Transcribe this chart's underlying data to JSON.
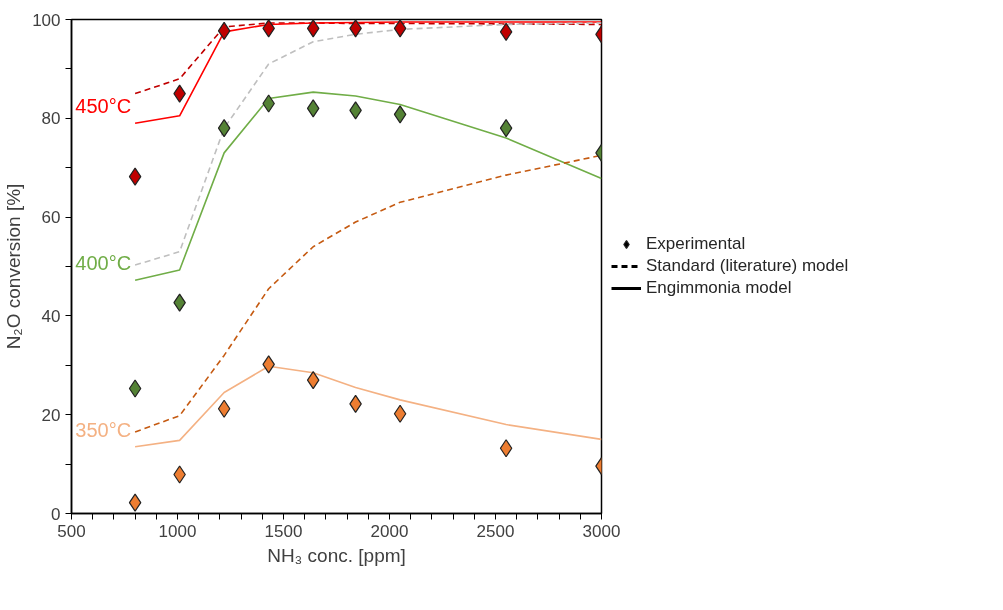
{
  "chart_data": {
    "type": "line",
    "xlabel": "NH₃ conc. [ppm]",
    "ylabel": "N₂O conversion [%]",
    "x": [
      800,
      1010,
      1220,
      1430,
      1640,
      1840,
      2050,
      2550,
      3000
    ],
    "xlim": [
      500,
      3000
    ],
    "xticks": [
      500,
      {
        "value": 600,
        "label": null
      },
      {
        "value": 700,
        "label": null
      },
      {
        "value": 800,
        "label": null
      },
      {
        "value": 900,
        "label": null
      },
      1000,
      {
        "value": 1100,
        "label": null
      },
      {
        "value": 1200,
        "label": null
      },
      {
        "value": 1300,
        "label": null
      },
      {
        "value": 1400,
        "label": null
      },
      1500,
      {
        "value": 1600,
        "label": null
      },
      {
        "value": 1700,
        "label": null
      },
      {
        "value": 1800,
        "label": null
      },
      {
        "value": 1900,
        "label": null
      },
      2000,
      {
        "value": 2100,
        "label": null
      },
      {
        "value": 2200,
        "label": null
      },
      {
        "value": 2300,
        "label": null
      },
      {
        "value": 2400,
        "label": null
      },
      2500,
      {
        "value": 2600,
        "label": null
      },
      {
        "value": 2700,
        "label": null
      },
      {
        "value": 2800,
        "label": null
      },
      {
        "value": 2900,
        "label": null
      },
      3000
    ],
    "ylim": [
      0,
      100
    ],
    "yticks": [
      0,
      {
        "value": 10,
        "label": null
      },
      20,
      {
        "value": 30,
        "label": null
      },
      40,
      {
        "value": 50,
        "label": null
      },
      60,
      {
        "value": 70,
        "label": null
      },
      80,
      {
        "value": 90,
        "label": null
      },
      100
    ],
    "grid": false,
    "legend": "right",
    "series": [
      {
        "line_style": "dashed",
        "color": "#c00000",
        "values": [
          85,
          88,
          98.5,
          99.3,
          99.3,
          99.2,
          99.2,
          99.1,
          99
        ]
      },
      {
        "line_style": "solid",
        "name": "450°C",
        "color": "#ff0000",
        "values": [
          79,
          80.5,
          97.5,
          99,
          99.3,
          99.4,
          99.5,
          99.5,
          99.5
        ]
      },
      {
        "line_style": "dashed",
        "color": "#bfbfbf",
        "values": [
          50.3,
          53,
          78,
          91,
          95.5,
          97,
          98,
          99,
          99.3
        ]
      },
      {
        "line_style": "solid",
        "name": "400°C",
        "color": "#70ad47",
        "values": [
          47.2,
          49.3,
          73,
          84,
          85.3,
          84.5,
          82.8,
          76,
          67.8
        ]
      },
      {
        "line_style": "dashed",
        "color": "#c55a11",
        "values": [
          16.5,
          19.8,
          32,
          45.5,
          54,
          59,
          63,
          68.5,
          72.5
        ]
      },
      {
        "line_style": "solid",
        "name": "350°C",
        "color": "#f4b183",
        "values": [
          13.5,
          14.8,
          24.5,
          29.8,
          28.5,
          25.5,
          23,
          18,
          15
        ]
      },
      {
        "type": "scatter",
        "marker": "diamond",
        "color": "#c00000",
        "values": [
          68.2,
          85,
          97.7,
          98.2,
          98.2,
          98.2,
          98.2,
          97.5,
          97
        ]
      },
      {
        "type": "scatter",
        "marker": "diamond",
        "color": "#548235",
        "values": [
          25.3,
          42.7,
          78,
          83,
          82,
          81.6,
          80.8,
          78,
          73
        ]
      },
      {
        "type": "scatter",
        "marker": "diamond",
        "color": "#ed7d31",
        "values": [
          2.2,
          7.9,
          21.2,
          30.2,
          27,
          22.2,
          20.2,
          13.2,
          9.6
        ]
      },
      {
        "type": "scatter",
        "marker": "diamond",
        "name": "Experimental",
        "color": "#000000",
        "values": [
          null,
          null,
          null,
          null,
          null,
          null,
          null,
          null,
          null
        ]
      },
      {
        "line_style": "dashed",
        "name": "Standard (literature) model",
        "color": "#000000",
        "values": [
          null,
          null,
          null,
          null,
          null,
          null,
          null,
          null,
          null
        ]
      },
      {
        "line_style": "solid",
        "name": "Engimmonia model",
        "color": "#000000",
        "values": [
          null,
          null,
          null,
          null,
          null,
          null,
          null,
          null,
          null
        ]
      }
    ]
  }
}
